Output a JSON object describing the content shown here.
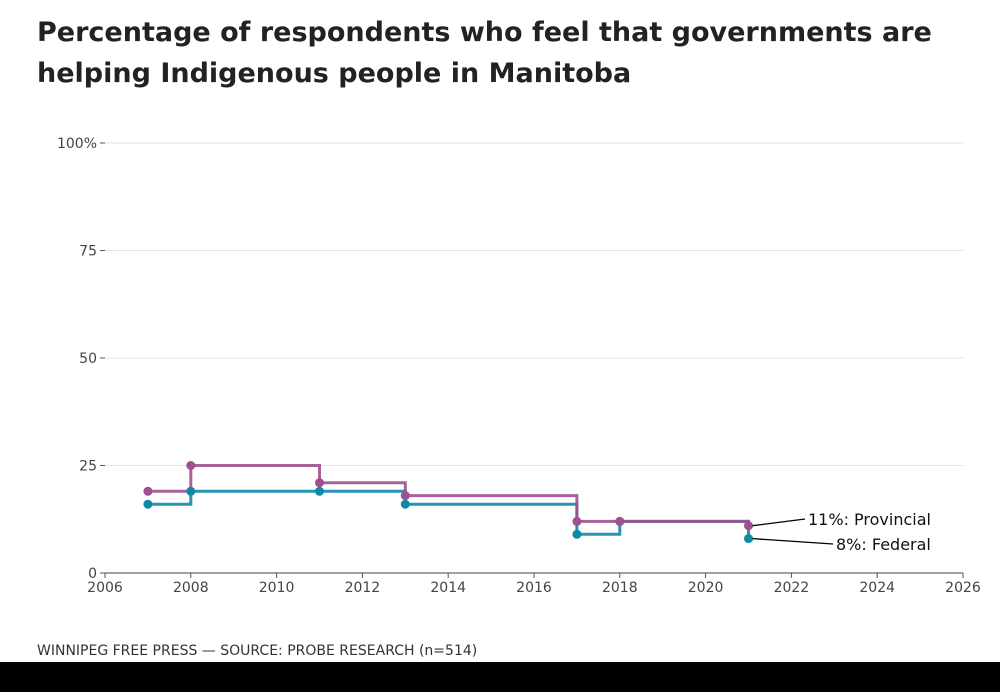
{
  "title": "Percentage of respondents who feel that governments are helping Indigenous people in Manitoba",
  "footer": "WINNIPEG FREE PRESS — SOURCE: PROBE RESEARCH (n=514)",
  "chart_data": {
    "type": "line",
    "step": true,
    "xlim": [
      2006,
      2026
    ],
    "ylim": [
      0,
      100
    ],
    "x_ticks": [
      "2006",
      "2008",
      "2010",
      "2012",
      "2014",
      "2016",
      "2018",
      "2020",
      "2022",
      "2024",
      "2026"
    ],
    "y_ticks": [
      "0",
      "25",
      "50",
      "75",
      "100%"
    ],
    "grid": true,
    "series": [
      {
        "name": "Provincial",
        "color": "#a0508f",
        "x": [
          2007,
          2008,
          2011,
          2013,
          2017,
          2018,
          2021
        ],
        "values": [
          19,
          25,
          21,
          18,
          12,
          12,
          11
        ],
        "end_label": "11%: Provincial"
      },
      {
        "name": "Federal",
        "color": "#0e8aa6",
        "x": [
          2007,
          2008,
          2011,
          2013,
          2017,
          2018,
          2021
        ],
        "values": [
          16,
          19,
          19,
          16,
          9,
          12,
          8
        ],
        "end_label": "8%: Federal"
      }
    ]
  }
}
